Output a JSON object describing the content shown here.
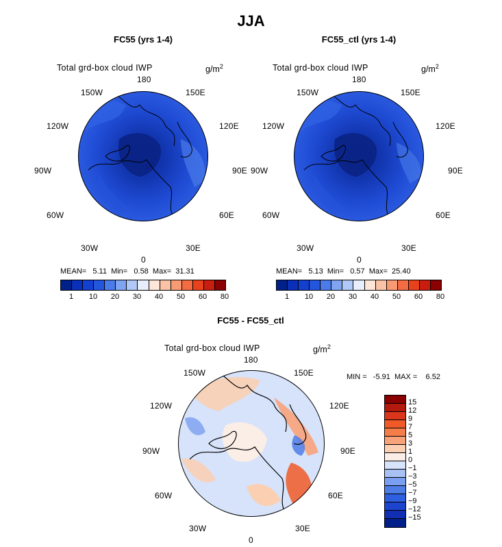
{
  "figure": {
    "title": "JJA",
    "variable_label": "Total grd-box cloud IWP",
    "units_base": "g/m",
    "units_exp": "2"
  },
  "panels": [
    {
      "title": "FC55 (yrs 1-4)",
      "stats": "MEAN=   5.11  Min=   0.58  Max=  31.31"
    },
    {
      "title": "FC55_ctl (yrs 1-4)",
      "stats": "MEAN=   5.13  Min=   0.57  Max=  25.40"
    },
    {
      "title": "FC55 - FC55_ctl",
      "stats": "MIN =   -5.91  MAX =    6.52"
    }
  ],
  "longitudes": [
    "180",
    "150E",
    "120E",
    "90E",
    "60E",
    "30E",
    "0",
    "30W",
    "60W",
    "90W",
    "120W",
    "150W"
  ],
  "colorbar_abs": {
    "colors": [
      "#00208a",
      "#0a2fb8",
      "#1440d0",
      "#2356dc",
      "#4a7be8",
      "#7fa4f0",
      "#b0c8f7",
      "#e8eefb",
      "#fde6d8",
      "#fbc3a6",
      "#f89a73",
      "#f26b43",
      "#e8421c",
      "#c81e0f",
      "#8b0000"
    ],
    "ticks": [
      "1",
      "10",
      "20",
      "30",
      "40",
      "50",
      "60",
      "80"
    ]
  },
  "colorbar_diff": {
    "colors": [
      "#8b0000",
      "#b3190d",
      "#d9361b",
      "#f05a28",
      "#f57d4a",
      "#f8a27a",
      "#fbcfb2",
      "#fbeee6",
      "#d7e3fa",
      "#a8c1f3",
      "#7a9ef0",
      "#4f7de8",
      "#2d5fe0",
      "#1c44cf",
      "#102fb3",
      "#001f8a"
    ],
    "ticks": [
      "15",
      "12",
      "9",
      "7",
      "5",
      "3",
      "1",
      "0",
      "−1",
      "−3",
      "−5",
      "−7",
      "−9",
      "−12",
      "−15"
    ]
  }
}
